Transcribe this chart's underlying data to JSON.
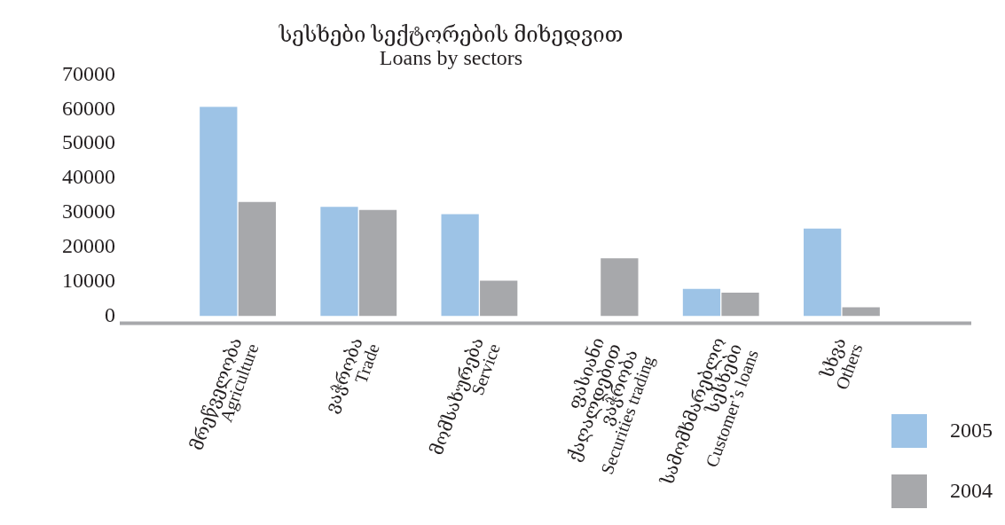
{
  "chart_data": {
    "type": "bar",
    "title": [
      "სესხები სექტორების მიხედვით",
      "Loans by sectors"
    ],
    "categories": [
      "მრეწველობა\nAgriculture",
      "ვაჭრობა\nTrade",
      "მომსახურება\nService",
      "ფასიანი\nქაღალდებით\nვაჭრობა\nSecurities trading",
      "სამომხმარებლო\nსესხები\nCustomer’s loans",
      "სხვა\nOthers"
    ],
    "series": [
      {
        "name": "2005",
        "color": "#9dc3e6",
        "values": [
          60700,
          31700,
          29600,
          null,
          7900,
          25400
        ]
      },
      {
        "name": "2004",
        "color": "#a7a8ab",
        "values": [
          33100,
          30800,
          10300,
          16800,
          6800,
          2600
        ]
      }
    ],
    "ylim": [
      0,
      70000
    ],
    "yticks": [
      0,
      10000,
      20000,
      30000,
      40000,
      50000,
      60000,
      70000
    ],
    "grid": false,
    "legend": "bottom right"
  }
}
